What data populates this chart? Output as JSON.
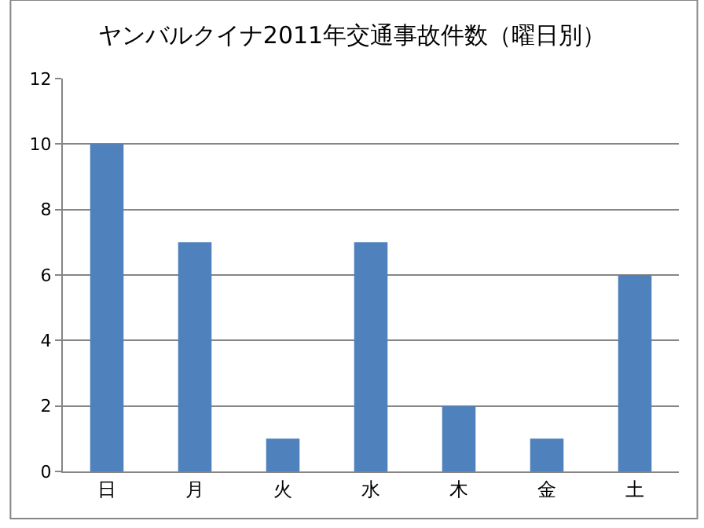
{
  "chart_data": {
    "type": "bar",
    "title": "ヤンバルクイナ2011年交通事故件数（曜日別）",
    "categories": [
      "日",
      "月",
      "火",
      "水",
      "木",
      "金",
      "土"
    ],
    "values": [
      10,
      7,
      1,
      7,
      2,
      1,
      6
    ],
    "color": "#4f81bd",
    "ylim": [
      0,
      12
    ],
    "yticks": [
      0,
      2,
      4,
      6,
      8,
      10,
      12
    ],
    "grid": "y",
    "legend": false
  }
}
